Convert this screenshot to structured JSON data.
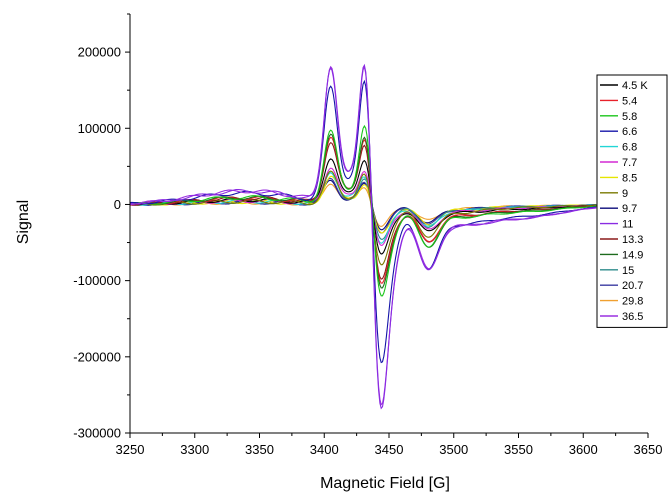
{
  "chart_data": {
    "type": "line",
    "xlabel": "Magnetic Field [G]",
    "ylabel": "Signal",
    "xlim": [
      3250,
      3650
    ],
    "ylim": [
      -300000,
      250000
    ],
    "x_ticks": [
      3250,
      3300,
      3350,
      3400,
      3450,
      3500,
      3550,
      3600,
      3650
    ],
    "y_ticks": [
      -300000,
      -200000,
      -100000,
      0,
      100000,
      200000
    ],
    "x_tick_labels": [
      "3250",
      "3300",
      "3350",
      "3400",
      "3450",
      "3500",
      "3550",
      "3600",
      "3650"
    ],
    "y_tick_labels": [
      "-300000",
      "-200000",
      "-100000",
      "0",
      "100000",
      "200000"
    ],
    "grid": false,
    "legend_position": "right",
    "series": [
      {
        "name": "4.5 K",
        "color": "#000000",
        "peak1": 60000,
        "peak2": 65000,
        "trough": -60000,
        "dip": -30000
      },
      {
        "name": "5.4",
        "color": "#e8212a",
        "peak1": 85000,
        "peak2": 95000,
        "trough": -95000,
        "dip": -40000
      },
      {
        "name": "5.8",
        "color": "#19c519",
        "peak1": 92000,
        "peak2": 112000,
        "trough": -108000,
        "dip": -45000
      },
      {
        "name": "6.6",
        "color": "#1414a8",
        "peak1": 149000,
        "peak2": 177000,
        "trough": -185000,
        "dip": -70000
      },
      {
        "name": "6.8",
        "color": "#22d6d6",
        "peak1": 42000,
        "peak2": 40000,
        "trough": -45000,
        "dip": -25000
      },
      {
        "name": "7.7",
        "color": "#d42ad4",
        "peak1": 48000,
        "peak2": 50000,
        "trough": -50000,
        "dip": -28000
      },
      {
        "name": "8.5",
        "color": "#e6e600",
        "peak1": 35000,
        "peak2": 30000,
        "trough": -35000,
        "dip": -22000
      },
      {
        "name": "9",
        "color": "#7a7a00",
        "peak1": 40000,
        "peak2": 45000,
        "trough": -70000,
        "dip": -35000
      },
      {
        "name": "9.7",
        "color": "#0a0a7a",
        "peak1": 30000,
        "peak2": 28000,
        "trough": -28000,
        "dip": -20000
      },
      {
        "name": "11",
        "color": "#8a2be2",
        "peak1": 175000,
        "peak2": 206000,
        "trough": -240000,
        "dip": -72000
      },
      {
        "name": "13.3",
        "color": "#8b1a1a",
        "peak1": 80000,
        "peak2": 88000,
        "trough": -90000,
        "dip": -42000
      },
      {
        "name": "14.9",
        "color": "#1e6b1e",
        "peak1": 88000,
        "peak2": 98000,
        "trough": -100000,
        "dip": -46000
      },
      {
        "name": "15",
        "color": "#2e8b8b",
        "peak1": 38000,
        "peak2": 35000,
        "trough": -40000,
        "dip": -24000
      },
      {
        "name": "20.7",
        "color": "#3a3aa0",
        "peak1": 33000,
        "peak2": 30000,
        "trough": -32000,
        "dip": -22000
      },
      {
        "name": "29.8",
        "color": "#f0a030",
        "peak1": 28000,
        "peak2": 25000,
        "trough": -26000,
        "dip": -18000
      },
      {
        "name": "36.5",
        "color": "#9a30e0",
        "peak1": 176000,
        "peak2": 205000,
        "trough": -238000,
        "dip": -70000
      }
    ]
  }
}
